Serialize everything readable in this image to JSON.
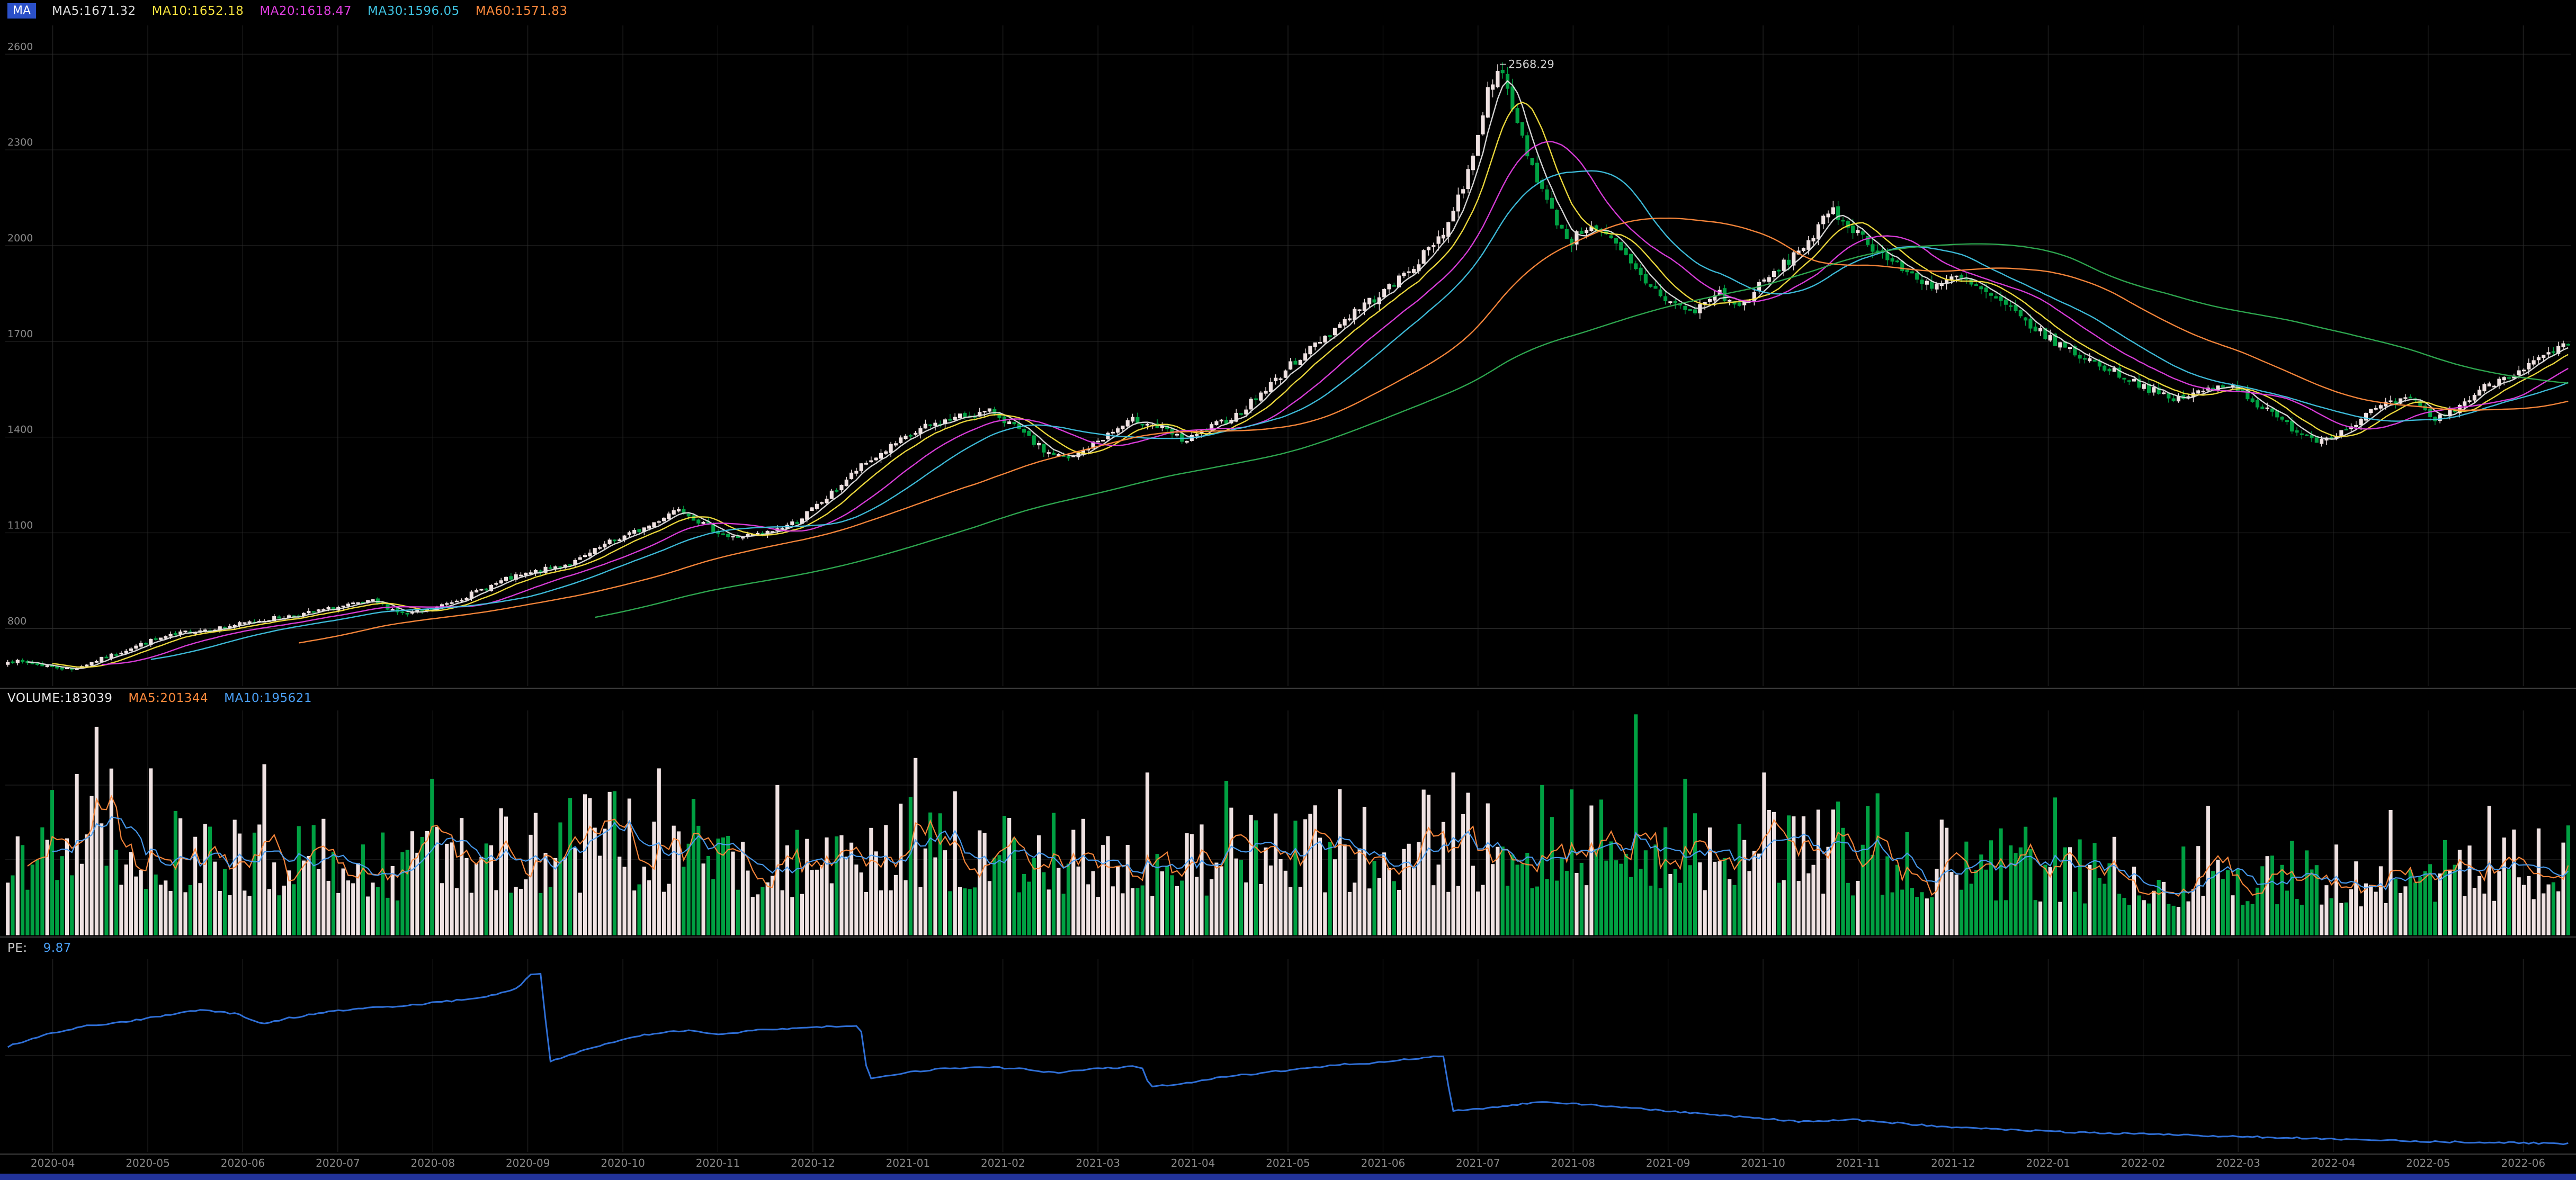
{
  "main_header": {
    "badge": "MA",
    "tokens": [
      {
        "text": "MA5:1671.32",
        "color": "#dedede"
      },
      {
        "text": "MA10:1652.18",
        "color": "#f5e13e"
      },
      {
        "text": "MA20:1618.47",
        "color": "#e03ee0"
      },
      {
        "text": "MA30:1596.05",
        "color": "#3fc2e0"
      },
      {
        "text": "MA60:1571.83",
        "color": "#ff8a3c"
      }
    ]
  },
  "volume_header": {
    "tokens": [
      {
        "text": "VOLUME:183039",
        "color": "#e8e8e8"
      },
      {
        "text": "MA5:201344",
        "color": "#ff8a3c"
      },
      {
        "text": "MA10:195621",
        "color": "#4a9ff5"
      }
    ]
  },
  "indicator_header": {
    "tokens": [
      {
        "text": "PE:",
        "color": "#cfcfcf"
      },
      {
        "text": "9.87",
        "color": "#4a9ff5"
      }
    ]
  },
  "chart_data": {
    "type": "candlestick+volume+line",
    "title": "",
    "x_axis": {
      "labels": [
        "2020-04",
        "2020-05",
        "2020-06",
        "2020-07",
        "2020-08",
        "2020-09",
        "2020-10",
        "2020-11",
        "2020-12",
        "2021-01",
        "2021-02",
        "2021-03",
        "2021-04",
        "2021-05",
        "2021-06",
        "2021-07",
        "2021-08",
        "2021-09",
        "2021-10",
        "2021-11",
        "2021-12",
        "2022-01",
        "2022-02",
        "2022-03",
        "2022-04",
        "2022-05",
        "2022-06"
      ]
    },
    "price_axis": {
      "range": [
        620,
        2690
      ],
      "ticks": [
        800,
        1100,
        1400,
        1700,
        2000,
        2300,
        2600
      ]
    },
    "candles": {
      "count": 520,
      "seed": 7,
      "noise": 0.016,
      "close_keypoints": [
        [
          0.0,
          700
        ],
        [
          0.01,
          690
        ],
        [
          0.025,
          672
        ],
        [
          0.04,
          715
        ],
        [
          0.055,
          760
        ],
        [
          0.07,
          790
        ],
        [
          0.085,
          805
        ],
        [
          0.1,
          828
        ],
        [
          0.115,
          845
        ],
        [
          0.13,
          868
        ],
        [
          0.143,
          885
        ],
        [
          0.155,
          845
        ],
        [
          0.165,
          858
        ],
        [
          0.18,
          905
        ],
        [
          0.195,
          955
        ],
        [
          0.21,
          985
        ],
        [
          0.222,
          1010
        ],
        [
          0.235,
          1070
        ],
        [
          0.25,
          1120
        ],
        [
          0.262,
          1180
        ],
        [
          0.272,
          1125
        ],
        [
          0.282,
          1085
        ],
        [
          0.295,
          1095
        ],
        [
          0.308,
          1135
        ],
        [
          0.32,
          1210
        ],
        [
          0.332,
          1300
        ],
        [
          0.345,
          1370
        ],
        [
          0.358,
          1430
        ],
        [
          0.372,
          1465
        ],
        [
          0.385,
          1480
        ],
        [
          0.395,
          1420
        ],
        [
          0.405,
          1355
        ],
        [
          0.415,
          1330
        ],
        [
          0.428,
          1400
        ],
        [
          0.44,
          1455
        ],
        [
          0.45,
          1430
        ],
        [
          0.46,
          1385
        ],
        [
          0.47,
          1430
        ],
        [
          0.48,
          1470
        ],
        [
          0.492,
          1555
        ],
        [
          0.503,
          1640
        ],
        [
          0.515,
          1720
        ],
        [
          0.527,
          1800
        ],
        [
          0.54,
          1870
        ],
        [
          0.552,
          1960
        ],
        [
          0.562,
          2060
        ],
        [
          0.57,
          2220
        ],
        [
          0.578,
          2480
        ],
        [
          0.582,
          2568
        ],
        [
          0.588,
          2420
        ],
        [
          0.594,
          2280
        ],
        [
          0.602,
          2120
        ],
        [
          0.61,
          2010
        ],
        [
          0.618,
          2070
        ],
        [
          0.628,
          2000
        ],
        [
          0.638,
          1900
        ],
        [
          0.648,
          1830
        ],
        [
          0.658,
          1790
        ],
        [
          0.668,
          1855
        ],
        [
          0.676,
          1805
        ],
        [
          0.685,
          1880
        ],
        [
          0.695,
          1950
        ],
        [
          0.705,
          2030
        ],
        [
          0.712,
          2110
        ],
        [
          0.72,
          2060
        ],
        [
          0.73,
          1985
        ],
        [
          0.742,
          1915
        ],
        [
          0.752,
          1875
        ],
        [
          0.762,
          1900
        ],
        [
          0.772,
          1855
        ],
        [
          0.782,
          1800
        ],
        [
          0.795,
          1720
        ],
        [
          0.808,
          1660
        ],
        [
          0.82,
          1615
        ],
        [
          0.832,
          1570
        ],
        [
          0.845,
          1515
        ],
        [
          0.858,
          1545
        ],
        [
          0.868,
          1570
        ],
        [
          0.88,
          1495
        ],
        [
          0.892,
          1430
        ],
        [
          0.902,
          1390
        ],
        [
          0.912,
          1420
        ],
        [
          0.925,
          1490
        ],
        [
          0.938,
          1520
        ],
        [
          0.948,
          1455
        ],
        [
          0.958,
          1500
        ],
        [
          0.968,
          1560
        ],
        [
          0.978,
          1600
        ],
        [
          0.988,
          1640
        ],
        [
          1.0,
          1690
        ]
      ]
    },
    "ma_periods": [
      {
        "p": 5,
        "color": "#dedede"
      },
      {
        "p": 10,
        "color": "#f5e13e"
      },
      {
        "p": 20,
        "color": "#e03ee0"
      },
      {
        "p": 30,
        "color": "#3fc2e0"
      },
      {
        "p": 60,
        "color": "#ff8a3c"
      },
      {
        "p": 120,
        "color": "#2fae52"
      }
    ],
    "annotations": [
      {
        "frac": 0.582,
        "value": 2568.29,
        "text": "2568.29"
      }
    ],
    "volume": {
      "base_keypoints": [
        [
          0.0,
          0.5
        ],
        [
          0.03,
          0.85
        ],
        [
          0.05,
          0.6
        ],
        [
          0.08,
          0.55
        ],
        [
          0.12,
          0.5
        ],
        [
          0.16,
          0.45
        ],
        [
          0.2,
          0.55
        ],
        [
          0.25,
          0.6
        ],
        [
          0.3,
          0.5
        ],
        [
          0.35,
          0.62
        ],
        [
          0.4,
          0.52
        ],
        [
          0.45,
          0.5
        ],
        [
          0.5,
          0.55
        ],
        [
          0.55,
          0.6
        ],
        [
          0.6,
          0.55
        ],
        [
          0.635,
          0.7
        ],
        [
          0.66,
          0.55
        ],
        [
          0.7,
          0.58
        ],
        [
          0.75,
          0.48
        ],
        [
          0.8,
          0.42
        ],
        [
          0.85,
          0.38
        ],
        [
          0.88,
          0.42
        ],
        [
          0.92,
          0.38
        ],
        [
          0.96,
          0.45
        ],
        [
          1.0,
          0.5
        ]
      ],
      "spikes": [
        [
          0.034,
          1.0,
          "u"
        ],
        [
          0.055,
          0.8
        ],
        [
          0.1,
          0.82,
          "u"
        ],
        [
          0.165,
          0.75
        ],
        [
          0.255,
          0.8,
          "u"
        ],
        [
          0.3,
          0.72
        ],
        [
          0.355,
          0.85,
          "u"
        ],
        [
          0.445,
          0.78,
          "u"
        ],
        [
          0.475,
          0.74
        ],
        [
          0.52,
          0.7
        ],
        [
          0.565,
          0.78,
          "u"
        ],
        [
          0.6,
          0.72
        ],
        [
          0.635,
          1.06,
          "d"
        ],
        [
          0.655,
          0.75
        ],
        [
          0.685,
          0.78,
          "u"
        ],
        [
          0.73,
          0.68
        ],
        [
          0.8,
          0.66
        ],
        [
          0.86,
          0.62
        ],
        [
          0.93,
          0.6
        ],
        [
          0.97,
          0.62,
          "u"
        ]
      ],
      "ma": [
        {
          "p": 5,
          "color": "#ff8a3c"
        },
        {
          "p": 10,
          "color": "#4a9ff5"
        }
      ]
    },
    "indicator_line": {
      "color": "#2f6fd6",
      "keypoints": [
        [
          0.0,
          52
        ],
        [
          0.015,
          58
        ],
        [
          0.03,
          62
        ],
        [
          0.045,
          64
        ],
        [
          0.06,
          67
        ],
        [
          0.075,
          70
        ],
        [
          0.09,
          68
        ],
        [
          0.1,
          63
        ],
        [
          0.11,
          66
        ],
        [
          0.125,
          69
        ],
        [
          0.14,
          71
        ],
        [
          0.155,
          72
        ],
        [
          0.17,
          74
        ],
        [
          0.185,
          76
        ],
        [
          0.198,
          80
        ],
        [
          0.205,
          88
        ],
        [
          0.209,
          88
        ],
        [
          0.211,
          44
        ],
        [
          0.22,
          48
        ],
        [
          0.235,
          54
        ],
        [
          0.25,
          58
        ],
        [
          0.265,
          60
        ],
        [
          0.278,
          58
        ],
        [
          0.292,
          60
        ],
        [
          0.31,
          61
        ],
        [
          0.325,
          62
        ],
        [
          0.333,
          62
        ],
        [
          0.336,
          36
        ],
        [
          0.35,
          39
        ],
        [
          0.365,
          41
        ],
        [
          0.38,
          42
        ],
        [
          0.395,
          41
        ],
        [
          0.41,
          39
        ],
        [
          0.425,
          41
        ],
        [
          0.44,
          42
        ],
        [
          0.443,
          42
        ],
        [
          0.446,
          32
        ],
        [
          0.46,
          34
        ],
        [
          0.475,
          37
        ],
        [
          0.49,
          39
        ],
        [
          0.505,
          41
        ],
        [
          0.52,
          43
        ],
        [
          0.535,
          44
        ],
        [
          0.548,
          46
        ],
        [
          0.558,
          47
        ],
        [
          0.561,
          47
        ],
        [
          0.564,
          20
        ],
        [
          0.58,
          22
        ],
        [
          0.6,
          25
        ],
        [
          0.62,
          23
        ],
        [
          0.64,
          21
        ],
        [
          0.66,
          19
        ],
        [
          0.68,
          17
        ],
        [
          0.7,
          15
        ],
        [
          0.72,
          16
        ],
        [
          0.74,
          14
        ],
        [
          0.76,
          12
        ],
        [
          0.78,
          11
        ],
        [
          0.8,
          10
        ],
        [
          0.83,
          9
        ],
        [
          0.86,
          8
        ],
        [
          0.89,
          7
        ],
        [
          0.92,
          6
        ],
        [
          0.95,
          5
        ],
        [
          0.98,
          4.5
        ],
        [
          1.0,
          4
        ]
      ]
    },
    "colors": {
      "up": "#efe2e2",
      "down": "#00a042",
      "grid": "#2d2d2d",
      "divider": "#3f3f3f",
      "axis_text": "#8a8a8a",
      "annotation_text": "#cfcfcf",
      "background": "#000000"
    }
  }
}
